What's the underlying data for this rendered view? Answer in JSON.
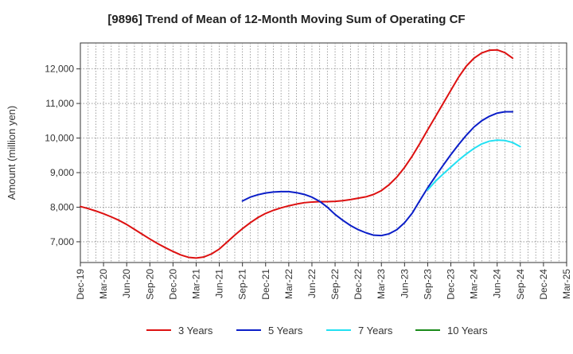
{
  "chart_data": {
    "type": "line",
    "title": "[9896]  Trend of Mean of 12-Month Moving Sum of Operating CF",
    "xlabel": "",
    "ylabel": "Amount (million yen)",
    "ylim": [
      6400,
      12750
    ],
    "yticks": [
      7000,
      8000,
      9000,
      10000,
      11000,
      12000
    ],
    "ytick_labels": [
      "7,000",
      "8,000",
      "9,000",
      "10,000",
      "11,000",
      "12,000"
    ],
    "grid": true,
    "legend_position": "bottom",
    "x_labels": [
      "Dec-19",
      "Mar-20",
      "Jun-20",
      "Sep-20",
      "Dec-20",
      "Mar-21",
      "Jun-21",
      "Sep-21",
      "Dec-21",
      "Mar-22",
      "Jun-22",
      "Sep-22",
      "Dec-22",
      "Mar-23",
      "Jun-23",
      "Sep-23",
      "Dec-23",
      "Mar-24",
      "Jun-24",
      "Sep-24",
      "Dec-24",
      "Mar-25"
    ],
    "series": [
      {
        "name": "3 Years",
        "color": "#dd1111",
        "start_index": 0,
        "values": [
          8020,
          7960,
          7890,
          7810,
          7720,
          7620,
          7500,
          7360,
          7220,
          7080,
          6950,
          6830,
          6720,
          6620,
          6550,
          6530,
          6560,
          6650,
          6790,
          6990,
          7190,
          7380,
          7550,
          7700,
          7820,
          7910,
          7980,
          8040,
          8090,
          8130,
          8150,
          8160,
          8160,
          8170,
          8190,
          8220,
          8260,
          8300,
          8370,
          8480,
          8650,
          8870,
          9150,
          9480,
          9850,
          10240,
          10620,
          11000,
          11380,
          11760,
          12080,
          12310,
          12460,
          12540,
          12550,
          12470,
          12310
        ]
      },
      {
        "name": "5 Years",
        "color": "#0b1ec8",
        "start_index": 21,
        "values": [
          8180,
          8290,
          8360,
          8410,
          8440,
          8450,
          8450,
          8420,
          8370,
          8290,
          8170,
          8000,
          7790,
          7620,
          7470,
          7350,
          7260,
          7190,
          7180,
          7230,
          7350,
          7550,
          7830,
          8200,
          8560,
          8890,
          9210,
          9520,
          9810,
          10080,
          10320,
          10500,
          10630,
          10720,
          10760,
          10760
        ]
      },
      {
        "name": "7 Years",
        "color": "#22e0f2",
        "start_index": 45,
        "values": [
          8500,
          8750,
          8960,
          9160,
          9360,
          9540,
          9700,
          9830,
          9910,
          9940,
          9930,
          9870,
          9750
        ]
      },
      {
        "name": "10 Years",
        "color": "#1a8a1a",
        "start_index": 0,
        "values": []
      }
    ]
  }
}
